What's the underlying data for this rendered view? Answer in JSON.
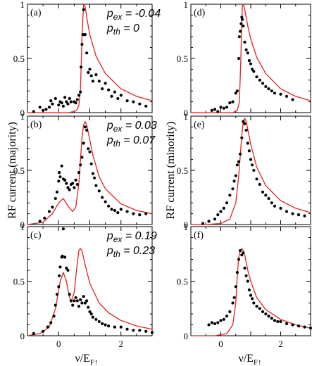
{
  "figure": {
    "xlabel_left": "ν/E",
    "xlabel_left_sub": "F↑",
    "xlabel_right": "ν/E",
    "xlabel_right_sub": "F↑",
    "ylabel_left": "RF current  (majority)",
    "ylabel_right": "RF current (minority)"
  },
  "chart_data": [
    {
      "type": "scatter",
      "panel": "(a)",
      "annotation": [
        "p_ex = -0.04",
        "p_th = 0"
      ],
      "xlim": [
        -1,
        3
      ],
      "ylim": [
        0,
        1
      ],
      "xticks": [
        "0",
        "2"
      ],
      "yticks": [
        "0",
        "0.5",
        "1"
      ],
      "colors": {
        "curve": "#dd2222",
        "points": "#000000"
      },
      "curve": {
        "x": [
          -1.0,
          -0.5,
          0.0,
          0.3,
          0.5,
          0.6,
          0.65,
          0.7,
          0.75,
          0.8,
          0.85,
          0.9,
          1.0,
          1.2,
          1.5,
          2.0,
          2.5,
          3.0
        ],
        "y": [
          0.0,
          0.0,
          0.0,
          0.0,
          0.01,
          0.03,
          0.07,
          0.2,
          0.7,
          1.0,
          0.98,
          0.88,
          0.72,
          0.52,
          0.36,
          0.22,
          0.15,
          0.11
        ]
      },
      "points": [
        [
          -0.8,
          0.01
        ],
        [
          -0.6,
          0.05
        ],
        [
          -0.5,
          0.02
        ],
        [
          -0.4,
          0.03
        ],
        [
          -0.3,
          0.05
        ],
        [
          -0.25,
          0.11
        ],
        [
          -0.2,
          0.08
        ],
        [
          -0.1,
          0.13
        ],
        [
          0.0,
          0.07
        ],
        [
          0.05,
          0.1
        ],
        [
          0.1,
          0.09
        ],
        [
          0.15,
          0.06
        ],
        [
          0.2,
          0.14
        ],
        [
          0.25,
          0.1
        ],
        [
          0.3,
          0.08
        ],
        [
          0.35,
          0.13
        ],
        [
          0.4,
          0.1
        ],
        [
          0.5,
          0.1
        ],
        [
          0.55,
          0.09
        ],
        [
          0.6,
          0.12
        ],
        [
          0.65,
          0.16
        ],
        [
          0.7,
          0.19
        ],
        [
          0.72,
          0.42
        ],
        [
          0.75,
          0.63
        ],
        [
          0.78,
          0.72
        ],
        [
          0.8,
          0.95
        ],
        [
          0.85,
          0.72
        ],
        [
          0.9,
          0.55
        ],
        [
          0.95,
          0.37
        ],
        [
          1.0,
          0.4
        ],
        [
          1.05,
          0.34
        ],
        [
          1.1,
          0.29
        ],
        [
          1.2,
          0.35
        ],
        [
          1.3,
          0.29
        ],
        [
          1.4,
          0.22
        ],
        [
          1.5,
          0.27
        ],
        [
          1.6,
          0.21
        ],
        [
          1.7,
          0.15
        ],
        [
          1.8,
          0.19
        ],
        [
          1.9,
          0.13
        ],
        [
          2.0,
          0.16
        ],
        [
          2.2,
          0.11
        ],
        [
          2.4,
          0.1
        ],
        [
          2.6,
          0.08
        ],
        [
          2.8,
          0.06
        ]
      ]
    },
    {
      "type": "scatter",
      "panel": "(b)",
      "annotation": [
        "p_ex = 0.03",
        "p_th = 0.07"
      ],
      "xlim": [
        -1,
        3
      ],
      "ylim": [
        0,
        1
      ],
      "xticks": [
        "0",
        "2"
      ],
      "yticks": [
        "0",
        "0.5",
        "1"
      ],
      "colors": {
        "curve": "#dd2222",
        "points": "#000000"
      },
      "curve": {
        "x": [
          -1.0,
          -0.5,
          -0.2,
          0.0,
          0.15,
          0.3,
          0.45,
          0.55,
          0.65,
          0.75,
          0.8,
          0.85,
          0.9,
          0.95,
          1.0,
          1.1,
          1.3,
          1.5,
          2.0,
          2.5,
          3.0
        ],
        "y": [
          0.0,
          0.02,
          0.1,
          0.2,
          0.24,
          0.17,
          0.12,
          0.16,
          0.38,
          0.8,
          0.92,
          0.95,
          0.92,
          0.85,
          0.78,
          0.64,
          0.44,
          0.33,
          0.19,
          0.13,
          0.1
        ]
      },
      "points": [
        [
          -0.6,
          0.03
        ],
        [
          -0.45,
          0.06
        ],
        [
          -0.3,
          0.12
        ],
        [
          -0.2,
          0.16
        ],
        [
          -0.1,
          0.24
        ],
        [
          -0.05,
          0.3
        ],
        [
          0.0,
          0.4
        ],
        [
          0.02,
          0.48
        ],
        [
          0.05,
          0.44
        ],
        [
          0.1,
          0.54
        ],
        [
          0.15,
          0.42
        ],
        [
          0.2,
          0.41
        ],
        [
          0.25,
          0.38
        ],
        [
          0.3,
          0.34
        ],
        [
          0.35,
          0.32
        ],
        [
          0.4,
          0.37
        ],
        [
          0.45,
          0.38
        ],
        [
          0.5,
          0.34
        ],
        [
          0.55,
          0.41
        ],
        [
          0.6,
          0.37
        ],
        [
          0.65,
          0.48
        ],
        [
          0.7,
          0.55
        ],
        [
          0.75,
          0.62
        ],
        [
          0.8,
          0.75
        ],
        [
          0.85,
          0.9
        ],
        [
          0.9,
          0.87
        ],
        [
          0.95,
          0.7
        ],
        [
          1.0,
          0.67
        ],
        [
          1.05,
          0.56
        ],
        [
          1.1,
          0.47
        ],
        [
          1.15,
          0.43
        ],
        [
          1.2,
          0.36
        ],
        [
          1.3,
          0.31
        ],
        [
          1.4,
          0.25
        ],
        [
          1.5,
          0.21
        ],
        [
          1.6,
          0.17
        ],
        [
          1.7,
          0.14
        ],
        [
          1.8,
          0.13
        ],
        [
          1.9,
          0.11
        ],
        [
          2.0,
          0.14
        ],
        [
          2.2,
          0.12
        ],
        [
          2.4,
          0.1
        ],
        [
          2.6,
          0.09
        ],
        [
          2.8,
          0.1
        ]
      ]
    },
    {
      "type": "scatter",
      "panel": "(c)",
      "annotation": [
        "p_ex = 0.19",
        "p_th = 0.23"
      ],
      "xlim": [
        -1,
        3
      ],
      "ylim": [
        0,
        1
      ],
      "xticks": [
        "0",
        "2"
      ],
      "yticks": [
        "0",
        "0.5",
        "1"
      ],
      "colors": {
        "curve": "#dd2222",
        "points": "#000000"
      },
      "curve": {
        "x": [
          -1.0,
          -0.6,
          -0.3,
          -0.1,
          0.05,
          0.15,
          0.25,
          0.35,
          0.42,
          0.5,
          0.58,
          0.65,
          0.7,
          0.75,
          0.85,
          1.0,
          1.3,
          1.6,
          2.0,
          2.5,
          3.0
        ],
        "y": [
          0.0,
          0.02,
          0.08,
          0.25,
          0.5,
          0.58,
          0.5,
          0.35,
          0.32,
          0.4,
          0.62,
          0.78,
          0.8,
          0.78,
          0.65,
          0.48,
          0.3,
          0.21,
          0.14,
          0.09,
          0.06
        ]
      },
      "points": [
        [
          -0.8,
          0.02
        ],
        [
          -0.5,
          0.04
        ],
        [
          -0.35,
          0.08
        ],
        [
          -0.25,
          0.12
        ],
        [
          -0.15,
          0.18
        ],
        [
          -0.1,
          0.28
        ],
        [
          -0.05,
          0.38
        ],
        [
          0.0,
          0.45
        ],
        [
          0.02,
          0.55
        ],
        [
          0.05,
          0.63
        ],
        [
          0.1,
          0.72
        ],
        [
          0.12,
          0.73
        ],
        [
          0.15,
          0.98
        ],
        [
          0.2,
          0.72
        ],
        [
          0.25,
          0.62
        ],
        [
          0.3,
          0.6
        ],
        [
          0.35,
          0.38
        ],
        [
          0.4,
          0.32
        ],
        [
          0.45,
          0.28
        ],
        [
          0.5,
          0.32
        ],
        [
          0.55,
          0.35
        ],
        [
          0.6,
          0.32
        ],
        [
          0.65,
          0.27
        ],
        [
          0.7,
          0.33
        ],
        [
          0.75,
          0.3
        ],
        [
          0.8,
          0.36
        ],
        [
          0.85,
          0.3
        ],
        [
          0.9,
          0.32
        ],
        [
          0.95,
          0.26
        ],
        [
          1.0,
          0.22
        ],
        [
          1.05,
          0.2
        ],
        [
          1.1,
          0.17
        ],
        [
          1.2,
          0.15
        ],
        [
          1.3,
          0.13
        ],
        [
          1.4,
          0.11
        ],
        [
          1.5,
          0.1
        ],
        [
          1.6,
          0.09
        ],
        [
          1.8,
          0.08
        ],
        [
          2.0,
          0.08
        ],
        [
          2.2,
          0.06
        ],
        [
          2.4,
          0.05
        ],
        [
          2.6,
          0.05
        ],
        [
          2.8,
          0.04
        ],
        [
          3.0,
          0.03
        ]
      ]
    },
    {
      "type": "scatter",
      "panel": "(d)",
      "annotation": [],
      "xlim": [
        -1,
        3
      ],
      "ylim": [
        0,
        1
      ],
      "xticks": [
        "0",
        "2"
      ],
      "yticks": [
        "0",
        "0.5",
        "1"
      ],
      "colors": {
        "curve": "#dd2222",
        "points": "#000000"
      },
      "curve": {
        "x": [
          -1.0,
          0.0,
          0.4,
          0.55,
          0.62,
          0.67,
          0.7,
          0.72,
          0.75,
          0.8,
          0.9,
          1.0,
          1.2,
          1.5,
          2.0,
          2.5,
          3.0
        ],
        "y": [
          0.0,
          0.0,
          0.0,
          0.02,
          0.1,
          0.5,
          0.85,
          0.98,
          1.0,
          0.95,
          0.8,
          0.68,
          0.51,
          0.36,
          0.22,
          0.15,
          0.11
        ]
      },
      "points": [
        [
          -0.3,
          0.02
        ],
        [
          -0.2,
          0.03
        ],
        [
          -0.1,
          0.01
        ],
        [
          0.0,
          0.05
        ],
        [
          0.1,
          0.04
        ],
        [
          0.2,
          0.05
        ],
        [
          0.3,
          0.09
        ],
        [
          0.4,
          0.1
        ],
        [
          0.5,
          0.18
        ],
        [
          0.55,
          0.2
        ],
        [
          0.6,
          0.5
        ],
        [
          0.62,
          0.7
        ],
        [
          0.65,
          0.75
        ],
        [
          0.68,
          0.82
        ],
        [
          0.7,
          0.88
        ],
        [
          0.72,
          0.86
        ],
        [
          0.75,
          0.8
        ],
        [
          0.8,
          0.65
        ],
        [
          0.85,
          0.58
        ],
        [
          0.9,
          0.55
        ],
        [
          0.95,
          0.48
        ],
        [
          1.0,
          0.45
        ],
        [
          1.05,
          0.4
        ],
        [
          1.1,
          0.38
        ],
        [
          1.2,
          0.33
        ],
        [
          1.3,
          0.3
        ],
        [
          1.4,
          0.27
        ],
        [
          1.5,
          0.24
        ],
        [
          1.6,
          0.22
        ],
        [
          1.7,
          0.2
        ],
        [
          1.8,
          0.18
        ],
        [
          2.0,
          0.17
        ],
        [
          2.2,
          0.15
        ],
        [
          2.4,
          0.12
        ]
      ]
    },
    {
      "type": "scatter",
      "panel": "(e)",
      "annotation": [],
      "xlim": [
        -1,
        3
      ],
      "ylim": [
        0,
        1
      ],
      "xticks": [
        "0",
        "2"
      ],
      "yticks": [
        "0",
        "0.5",
        "1"
      ],
      "colors": {
        "curve": "#dd2222",
        "points": "#000000"
      },
      "curve": {
        "x": [
          -1.0,
          -0.5,
          0.0,
          0.3,
          0.5,
          0.6,
          0.7,
          0.75,
          0.8,
          0.85,
          0.9,
          1.0,
          1.2,
          1.5,
          2.0,
          2.5,
          3.0
        ],
        "y": [
          0.0,
          0.0,
          0.01,
          0.05,
          0.2,
          0.45,
          0.82,
          0.95,
          0.98,
          0.95,
          0.88,
          0.74,
          0.53,
          0.36,
          0.22,
          0.15,
          0.11
        ]
      },
      "points": [
        [
          -0.6,
          0.01
        ],
        [
          -0.4,
          0.03
        ],
        [
          -0.2,
          0.05
        ],
        [
          -0.1,
          0.09
        ],
        [
          0.0,
          0.12
        ],
        [
          0.1,
          0.15
        ],
        [
          0.2,
          0.2
        ],
        [
          0.3,
          0.27
        ],
        [
          0.4,
          0.33
        ],
        [
          0.45,
          0.4
        ],
        [
          0.5,
          0.45
        ],
        [
          0.55,
          0.55
        ],
        [
          0.6,
          0.58
        ],
        [
          0.65,
          0.65
        ],
        [
          0.7,
          0.8
        ],
        [
          0.75,
          0.95
        ],
        [
          0.8,
          0.93
        ],
        [
          0.85,
          0.87
        ],
        [
          0.9,
          0.75
        ],
        [
          0.95,
          0.68
        ],
        [
          1.0,
          0.6
        ],
        [
          1.05,
          0.55
        ],
        [
          1.1,
          0.5
        ],
        [
          1.2,
          0.42
        ],
        [
          1.3,
          0.37
        ],
        [
          1.4,
          0.3
        ],
        [
          1.5,
          0.27
        ],
        [
          1.6,
          0.24
        ],
        [
          1.7,
          0.2
        ],
        [
          1.8,
          0.17
        ],
        [
          2.0,
          0.15
        ],
        [
          2.2,
          0.12
        ],
        [
          2.4,
          0.1
        ],
        [
          2.6,
          0.09
        ],
        [
          2.8,
          0.08
        ]
      ]
    },
    {
      "type": "scatter",
      "panel": "(f)",
      "annotation": [],
      "xlim": [
        -1,
        3
      ],
      "ylim": [
        0,
        1
      ],
      "xticks": [
        "0",
        "2"
      ],
      "yticks": [
        "0",
        "0.5",
        "1"
      ],
      "colors": {
        "curve": "#dd2222",
        "points": "#000000"
      },
      "curve": {
        "x": [
          -1.0,
          -0.2,
          0.2,
          0.4,
          0.5,
          0.55,
          0.6,
          0.65,
          0.7,
          0.75,
          0.8,
          0.9,
          1.0,
          1.2,
          1.5,
          2.0,
          2.5,
          3.0
        ],
        "y": [
          0.0,
          0.0,
          0.02,
          0.1,
          0.3,
          0.55,
          0.72,
          0.78,
          0.8,
          0.78,
          0.74,
          0.6,
          0.5,
          0.35,
          0.24,
          0.15,
          0.1,
          0.07
        ]
      },
      "points": [
        [
          -0.4,
          0.1
        ],
        [
          -0.3,
          0.12
        ],
        [
          -0.2,
          0.11
        ],
        [
          -0.1,
          0.12
        ],
        [
          0.0,
          0.14
        ],
        [
          0.1,
          0.15
        ],
        [
          0.2,
          0.18
        ],
        [
          0.3,
          0.22
        ],
        [
          0.4,
          0.3
        ],
        [
          0.45,
          0.35
        ],
        [
          0.5,
          0.45
        ],
        [
          0.55,
          0.58
        ],
        [
          0.6,
          0.7
        ],
        [
          0.65,
          0.78
        ],
        [
          0.7,
          0.74
        ],
        [
          0.75,
          0.76
        ],
        [
          0.8,
          0.62
        ],
        [
          0.85,
          0.55
        ],
        [
          0.9,
          0.5
        ],
        [
          0.95,
          0.42
        ],
        [
          1.0,
          0.37
        ],
        [
          1.05,
          0.34
        ],
        [
          1.1,
          0.3
        ],
        [
          1.2,
          0.27
        ],
        [
          1.3,
          0.25
        ],
        [
          1.4,
          0.22
        ],
        [
          1.5,
          0.2
        ],
        [
          1.6,
          0.18
        ],
        [
          1.7,
          0.16
        ],
        [
          1.8,
          0.14
        ],
        [
          1.9,
          0.13
        ],
        [
          2.0,
          0.13
        ],
        [
          2.2,
          0.11
        ],
        [
          2.4,
          0.1
        ],
        [
          2.6,
          0.09
        ],
        [
          2.8,
          0.08
        ],
        [
          3.0,
          0.07
        ]
      ]
    }
  ]
}
